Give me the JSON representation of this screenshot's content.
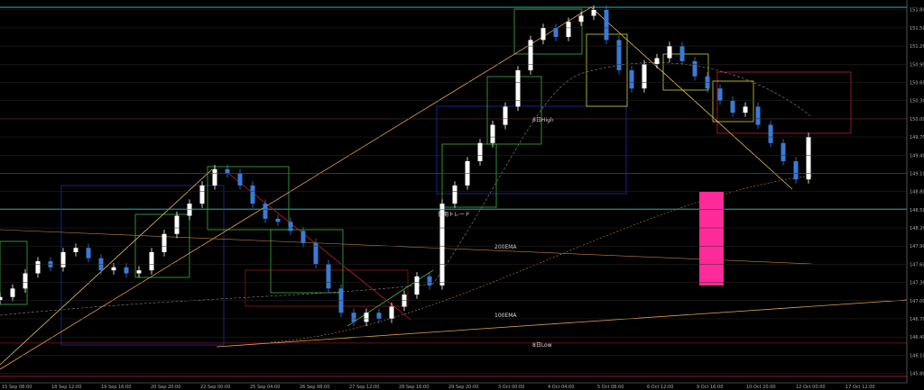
{
  "chart_data": {
    "type": "candlestick",
    "title": "",
    "xlabel": "",
    "ylabel": "",
    "ylim": [
      145.6,
      151.9
    ],
    "grid": false,
    "price_ticks": [
      151.8,
      151.5,
      151.2,
      150.9,
      150.6,
      150.3,
      150.0,
      149.7,
      149.4,
      149.1,
      148.8,
      148.5,
      148.2,
      147.9,
      147.6,
      147.3,
      147.0,
      146.7,
      146.4,
      146.1,
      145.8
    ],
    "time_labels": [
      "15 Sep 08:00",
      "18 Sep 12:00",
      "19 Sep 16:00",
      "20 Sep 20:00",
      "22 Sep 00:00",
      "25 Sep 04:00",
      "26 Sep 08:00",
      "27 Sep 12:00",
      "28 Sep 16:00",
      "29 Sep 20:00",
      "3 Oct 00:00",
      "4 Oct 04:00",
      "5 Oct 08:00",
      "6 Oct 12:00",
      "9 Oct 16:00",
      "10 Oct 20:00",
      "12 Oct 00:00",
      "17 Oct 12:00"
    ],
    "closes": [
      147.06,
      147.2,
      147.45,
      147.65,
      147.55,
      147.8,
      147.87,
      147.7,
      147.5,
      147.55,
      147.45,
      147.5,
      147.8,
      148.1,
      148.4,
      148.6,
      148.9,
      149.17,
      149.1,
      148.9,
      148.6,
      148.35,
      148.3,
      148.15,
      147.95,
      147.6,
      147.2,
      146.8,
      146.65,
      146.8,
      146.7,
      146.9,
      147.1,
      147.4,
      147.25,
      148.6,
      148.9,
      149.3,
      149.6,
      149.9,
      150.2,
      150.8,
      151.3,
      151.5,
      151.35,
      151.6,
      151.7,
      151.8,
      151.3,
      150.8,
      150.5,
      150.9,
      151.0,
      151.2,
      150.95,
      150.7,
      150.5,
      150.3,
      150.1,
      150.2,
      149.9,
      149.6,
      149.3,
      149.0,
      149.7
    ],
    "horizontal_levels": [
      {
        "price": 151.84,
        "color": "#2ec8c8"
      },
      {
        "price": 148.51,
        "color": "#2ec8c8"
      },
      {
        "price": 150.0,
        "color": "#8b1a1a"
      },
      {
        "price": 149.1,
        "color": "#c0202a"
      },
      {
        "price": 146.3,
        "color": "#8b1a1a"
      },
      {
        "price": 145.75,
        "color": "#c0202a"
      }
    ],
    "annotations": {
      "high": "8日High",
      "ema200": "200EMA",
      "ema100": "100EMA",
      "low": "8日Low",
      "trade": "長期トレード"
    },
    "colors": {
      "bull": "#ffffff",
      "bear": "#3a7bd5",
      "ema": "#c08040",
      "trend": "#e8c060",
      "box": "#40b040",
      "highlight": "#ff2a9a"
    }
  }
}
